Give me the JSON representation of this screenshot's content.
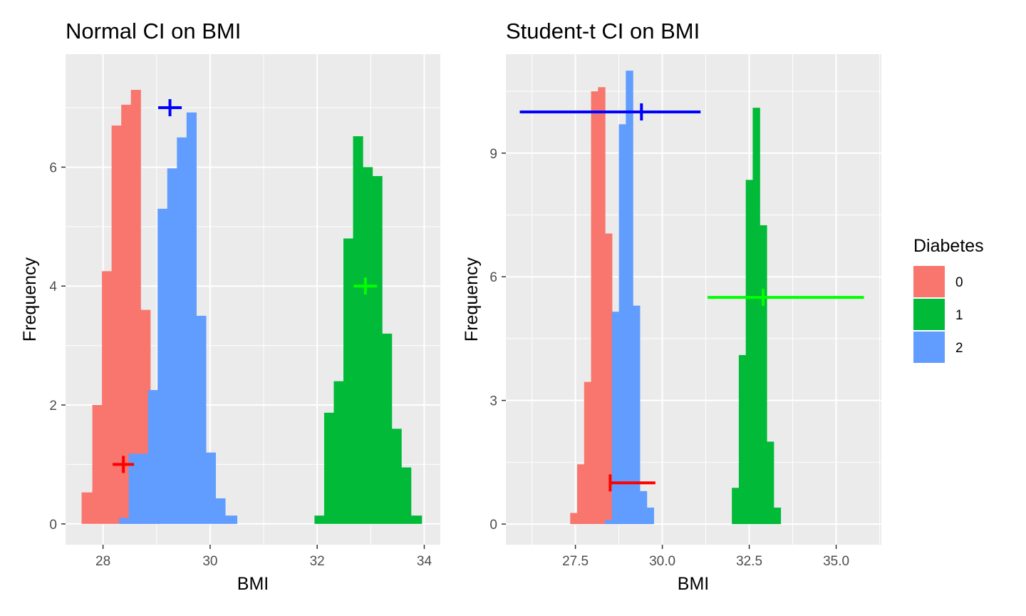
{
  "legend": {
    "title": "Diabetes",
    "items": [
      {
        "label": "0",
        "color": "#F8766D"
      },
      {
        "label": "1",
        "color": "#00BA38"
      },
      {
        "label": "2",
        "color": "#619CFF"
      }
    ]
  },
  "chart_data": [
    {
      "type": "bar",
      "subtype": "histogram",
      "title": "Normal CI on BMI",
      "xlabel": "BMI",
      "ylabel": "Frequency",
      "xlim": [
        27.3,
        34.3
      ],
      "ylim": [
        -0.35,
        7.9
      ],
      "xticks": [
        28,
        30,
        32,
        34
      ],
      "xtick_labels": [
        "28",
        "30",
        "32",
        "34"
      ],
      "yticks": [
        0,
        2,
        4,
        6
      ],
      "ytick_labels": [
        "0",
        "2",
        "4",
        "6"
      ],
      "grid": true,
      "series": [
        {
          "name": "0",
          "color": "#F8766D",
          "bins": [
            [
              27.6,
              27.8,
              0.53
            ],
            [
              27.8,
              27.98,
              2.0
            ],
            [
              27.98,
              28.16,
              4.25
            ],
            [
              28.16,
              28.34,
              6.7
            ],
            [
              28.34,
              28.52,
              7.05
            ],
            [
              28.52,
              28.7,
              7.3
            ],
            [
              28.7,
              28.88,
              3.6
            ],
            [
              28.88,
              29.06,
              2.25
            ]
          ]
        },
        {
          "name": "2",
          "color": "#619CFF",
          "bins": [
            [
              28.3,
              28.48,
              0.1
            ],
            [
              28.48,
              28.66,
              1.18
            ],
            [
              28.66,
              28.84,
              1.18
            ],
            [
              28.84,
              29.02,
              2.25
            ],
            [
              29.02,
              29.2,
              5.3
            ],
            [
              29.2,
              29.38,
              5.98
            ],
            [
              29.38,
              29.56,
              6.5
            ],
            [
              29.56,
              29.74,
              6.92
            ],
            [
              29.74,
              29.92,
              3.5
            ],
            [
              29.92,
              30.1,
              1.2
            ],
            [
              30.1,
              30.28,
              0.43
            ],
            [
              30.28,
              30.5,
              0.14
            ]
          ]
        },
        {
          "name": "1",
          "color": "#00BA38",
          "bins": [
            [
              31.95,
              32.13,
              0.14
            ],
            [
              32.13,
              32.31,
              1.87
            ],
            [
              32.31,
              32.49,
              2.4
            ],
            [
              32.49,
              32.67,
              4.8
            ],
            [
              32.67,
              32.85,
              6.52
            ],
            [
              32.85,
              33.03,
              6.0
            ],
            [
              33.03,
              33.21,
              5.85
            ],
            [
              33.21,
              33.39,
              3.2
            ],
            [
              33.39,
              33.57,
              1.6
            ],
            [
              33.57,
              33.75,
              0.95
            ],
            [
              33.75,
              33.95,
              0.14
            ]
          ]
        }
      ],
      "intervals": [
        {
          "group": "2",
          "color": "#0000FF",
          "center": 29.25,
          "low": 29.03,
          "high": 29.47,
          "y": 7.0
        },
        {
          "group": "1",
          "color": "#00FF00",
          "center": 32.9,
          "low": 32.68,
          "high": 33.12,
          "y": 4.0
        },
        {
          "group": "0",
          "color": "#FF0000",
          "center": 28.38,
          "low": 28.18,
          "high": 28.58,
          "y": 1.0
        }
      ]
    },
    {
      "type": "bar",
      "subtype": "histogram",
      "title": "Student-t CI on BMI",
      "xlabel": "BMI",
      "ylabel": "Frequency",
      "xlim": [
        25.5,
        36.3
      ],
      "ylim": [
        -0.5,
        11.4
      ],
      "xticks": [
        27.5,
        30.0,
        32.5,
        35.0
      ],
      "xtick_labels": [
        "27.5",
        "30.0",
        "32.5",
        "35.0"
      ],
      "yticks": [
        0,
        3,
        6,
        9
      ],
      "ytick_labels": [
        "0",
        "3",
        "6",
        "9"
      ],
      "grid": true,
      "series": [
        {
          "name": "0",
          "color": "#F8766D",
          "bins": [
            [
              27.35,
              27.55,
              0.27
            ],
            [
              27.55,
              27.75,
              1.45
            ],
            [
              27.75,
              27.95,
              3.45
            ],
            [
              27.95,
              28.15,
              10.5
            ],
            [
              28.15,
              28.35,
              10.6
            ],
            [
              28.35,
              28.55,
              7.05
            ],
            [
              28.55,
              28.75,
              5.15
            ]
          ]
        },
        {
          "name": "2",
          "color": "#619CFF",
          "bins": [
            [
              28.35,
              28.55,
              0.1
            ],
            [
              28.55,
              28.75,
              5.15
            ],
            [
              28.75,
              28.95,
              9.7
            ],
            [
              28.95,
              29.15,
              11.0
            ],
            [
              29.15,
              29.35,
              5.3
            ],
            [
              29.35,
              29.55,
              0.8
            ],
            [
              29.55,
              29.75,
              0.4
            ]
          ]
        },
        {
          "name": "1",
          "color": "#00BA38",
          "bins": [
            [
              32.0,
              32.2,
              0.88
            ],
            [
              32.2,
              32.4,
              4.1
            ],
            [
              32.4,
              32.6,
              8.35
            ],
            [
              32.6,
              32.8,
              10.1
            ],
            [
              32.8,
              33.0,
              7.25
            ],
            [
              33.0,
              33.2,
              2.0
            ],
            [
              33.2,
              33.4,
              0.4
            ]
          ]
        }
      ],
      "intervals": [
        {
          "group": "2",
          "color": "#0000FF",
          "center": 29.4,
          "low": 25.9,
          "high": 31.1,
          "y": 10.0
        },
        {
          "group": "1",
          "color": "#00FF00",
          "center": 32.9,
          "low": 31.3,
          "high": 35.8,
          "y": 5.5
        },
        {
          "group": "0",
          "color": "#FF0000",
          "center": 28.5,
          "low": 28.5,
          "high": 29.8,
          "y": 1.0
        }
      ]
    }
  ]
}
